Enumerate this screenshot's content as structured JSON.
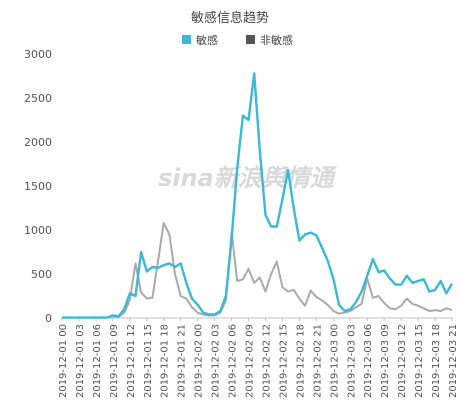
{
  "chart_data": {
    "type": "line",
    "title": "敏感信息趋势",
    "xlabel": "",
    "ylabel": "",
    "ylim": [
      0,
      3000
    ],
    "yticks": [
      "0",
      "500",
      "1000",
      "1500",
      "2000",
      "2500",
      "3000"
    ],
    "xtick_labels": [
      "2019-12-01 00",
      "2019-12-01 03",
      "2019-12-01 06",
      "2019-12-01 09",
      "2019-12-01 12",
      "2019-12-01 15",
      "2019-12-01 18",
      "2019-12-01 21",
      "2019-12-02 00",
      "2019-12-02 03",
      "2019-12-02 06",
      "2019-12-02 09",
      "2019-12-02 12",
      "2019-12-02 15",
      "2019-12-02 18",
      "2019-12-02 21",
      "2019-12-03 00",
      "2019-12-03 03",
      "2019-12-03 06",
      "2019-12-03 09",
      "2019-12-03 12",
      "2019-12-03 15",
      "2019-12-03 18",
      "2019-12-03 21"
    ],
    "legend_position": "top-center",
    "grid": false,
    "series": [
      {
        "name": "敏感",
        "color": "#3bb9d6",
        "values": [
          5,
          5,
          5,
          5,
          5,
          5,
          5,
          5,
          5,
          30,
          20,
          100,
          280,
          250,
          750,
          530,
          580,
          570,
          600,
          620,
          580,
          620,
          400,
          220,
          150,
          60,
          40,
          40,
          80,
          250,
          900,
          1700,
          2300,
          2250,
          2780,
          1900,
          1170,
          1040,
          1040,
          1350,
          1680,
          1250,
          880,
          950,
          970,
          940,
          800,
          650,
          450,
          150,
          80,
          100,
          180,
          300,
          480,
          670,
          520,
          540,
          450,
          380,
          380,
          480,
          400,
          420,
          440,
          300,
          320,
          420,
          280,
          390
        ]
      },
      {
        "name": "非敏感",
        "color": "#aaaaaa",
        "values": [
          5,
          5,
          5,
          5,
          5,
          5,
          5,
          5,
          5,
          20,
          10,
          60,
          200,
          620,
          290,
          220,
          230,
          650,
          1080,
          950,
          500,
          250,
          220,
          120,
          60,
          40,
          30,
          30,
          60,
          200,
          980,
          420,
          440,
          560,
          400,
          460,
          300,
          500,
          640,
          350,
          300,
          320,
          220,
          140,
          310,
          240,
          200,
          150,
          80,
          50,
          60,
          80,
          120,
          160,
          450,
          230,
          250,
          170,
          110,
          100,
          140,
          220,
          160,
          140,
          110,
          80,
          90,
          80,
          110,
          90
        ]
      }
    ]
  },
  "watermark": "sina新浪舆情通"
}
